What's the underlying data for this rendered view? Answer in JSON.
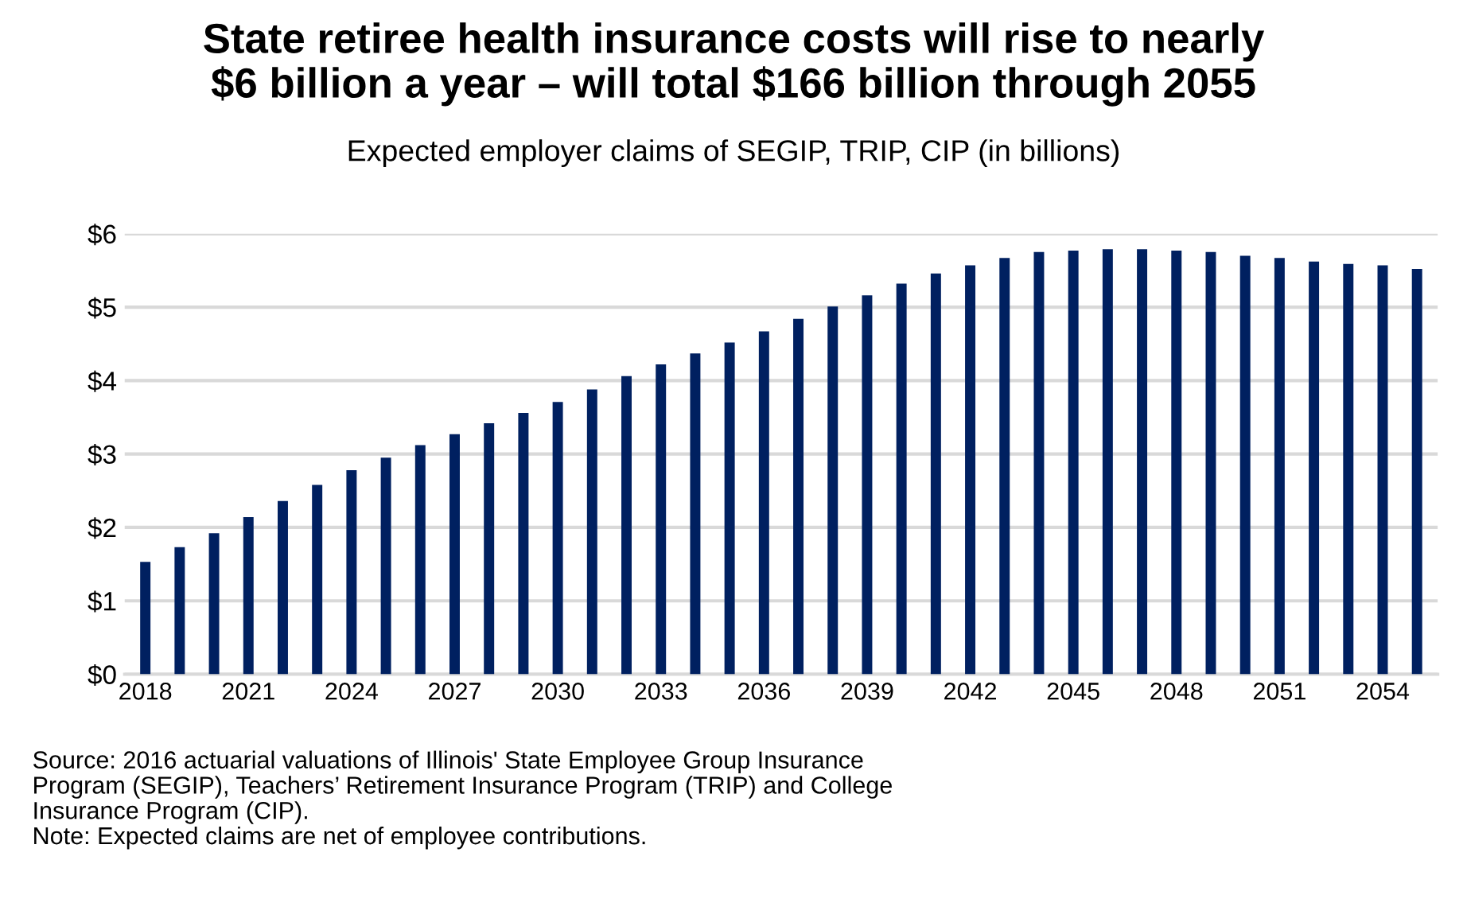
{
  "chart_data": {
    "type": "bar",
    "title": "State retiree health insurance costs will rise to nearly\n$6 billion a year – will total $166 billion through 2055",
    "subtitle": "Expected employer claims of SEGIP, TRIP, CIP (in billions)",
    "categories": [
      "2018",
      null,
      null,
      "2021",
      null,
      null,
      "2024",
      null,
      null,
      "2027",
      null,
      null,
      "2030",
      null,
      null,
      "2033",
      null,
      null,
      "2036",
      null,
      null,
      "2039",
      null,
      null,
      "2042",
      null,
      null,
      "2045",
      null,
      null,
      "2048",
      null,
      null,
      "2051",
      null,
      null,
      "2054",
      null
    ],
    "series": [
      {
        "color": "#002060",
        "values": [
          1.53,
          1.73,
          1.92,
          2.14,
          2.36,
          2.58,
          2.78,
          2.95,
          3.12,
          3.27,
          3.42,
          3.56,
          3.71,
          3.88,
          4.06,
          4.22,
          4.37,
          4.52,
          4.67,
          4.84,
          5.01,
          5.16,
          5.32,
          5.46,
          5.57,
          5.67,
          5.75,
          5.77,
          5.79,
          5.79,
          5.77,
          5.75,
          5.7,
          5.67,
          5.62,
          5.59,
          5.57,
          5.52
        ]
      }
    ],
    "ylim": [
      0,
      6
    ],
    "yticks": [
      {
        "value": 0,
        "label": "$0"
      },
      {
        "value": 1,
        "label": "$1"
      },
      {
        "value": 2,
        "label": "$2"
      },
      {
        "value": 3,
        "label": "$3"
      },
      {
        "value": 4,
        "label": "$4"
      },
      {
        "value": 5,
        "label": "$5"
      },
      {
        "value": 6,
        "label": "$6"
      }
    ],
    "grid": "y",
    "annotations": [
      "Source: 2016 actuarial valuations of Illinois' State Employee Group Insurance\nProgram (SEGIP), Teachers’ Retirement Insurance Program (TRIP) and College\nInsurance Program (CIP).\nNote: Expected claims are net of employee contributions."
    ]
  }
}
